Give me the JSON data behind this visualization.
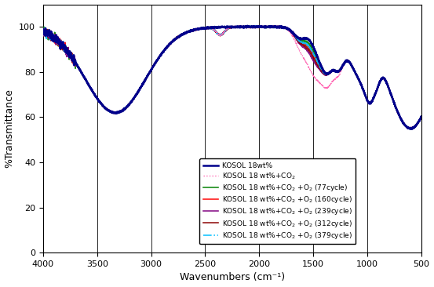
{
  "xlabel": "Wavenumbers (cm⁻¹)",
  "ylabel": "%Transmittance",
  "xlim": [
    4000,
    500
  ],
  "ylim": [
    0,
    110
  ],
  "yticks": [
    0,
    20,
    40,
    60,
    80,
    100
  ],
  "xticks": [
    4000,
    3500,
    3000,
    2500,
    2000,
    1500,
    1000,
    500
  ],
  "vlines": [
    3500,
    3000,
    2500,
    2000,
    1500,
    1000
  ],
  "series": [
    {
      "label": "KOSOL 18wt%",
      "color": "#00008B",
      "lw": 1.8,
      "ls": "-",
      "alpha": 1.0,
      "zorder": 5
    },
    {
      "label": "KOSOL 18 wt%+CO$_2$",
      "color": "#FF69B4",
      "lw": 1.0,
      "ls": ":",
      "alpha": 1.0,
      "zorder": 4
    },
    {
      "label": "KOSOL 18 wt%+CO$_2$ +O$_2$ (77cycle)",
      "color": "#008000",
      "lw": 1.2,
      "ls": "-",
      "alpha": 0.9,
      "zorder": 3
    },
    {
      "label": "KOSOL 18 wt%+CO$_2$ +O$_2$ (160cycle)",
      "color": "#FF0000",
      "lw": 1.2,
      "ls": "-",
      "alpha": 0.9,
      "zorder": 3
    },
    {
      "label": "KOSOL 18 wt%+CO$_2$ +O$_2$ (239cycle)",
      "color": "#800080",
      "lw": 1.2,
      "ls": "-",
      "alpha": 0.9,
      "zorder": 3
    },
    {
      "label": "KOSOL 18 wt%+CO$_2$ +O$_2$ (312cycle)",
      "color": "#8B0000",
      "lw": 1.2,
      "ls": "-",
      "alpha": 0.9,
      "zorder": 3
    },
    {
      "label": "KOSOL 18 wt%+CO$_2$ +O$_2$ (379cycle)",
      "color": "#00BFFF",
      "lw": 1.2,
      "ls": "-.",
      "alpha": 0.9,
      "zorder": 3
    }
  ]
}
